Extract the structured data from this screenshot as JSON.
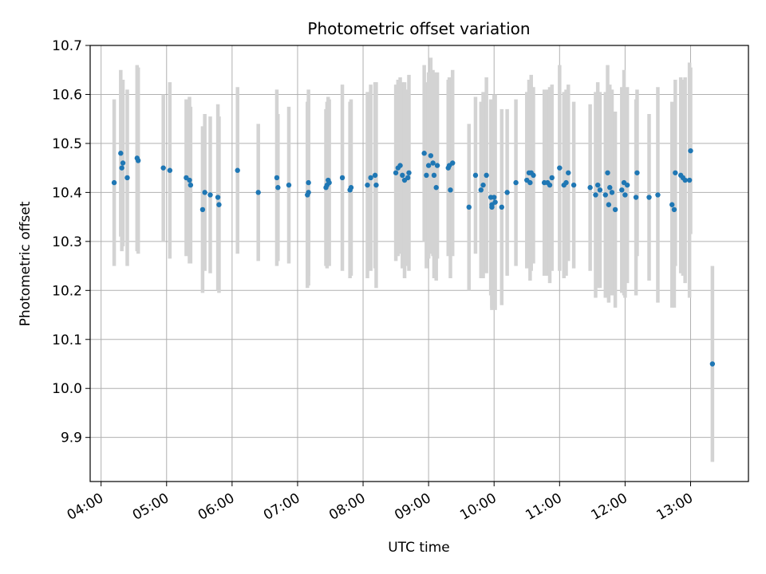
{
  "chart_data": {
    "type": "scatter",
    "title": "Photometric offset variation",
    "xlabel": "UTC time",
    "ylabel": "Photometric offset",
    "x_ticks": [
      "04:00",
      "05:00",
      "06:00",
      "07:00",
      "08:00",
      "09:00",
      "10:00",
      "11:00",
      "12:00",
      "13:00"
    ],
    "y_ticks": [
      "9.9",
      "10.0",
      "10.1",
      "10.2",
      "10.3",
      "10.4",
      "10.5",
      "10.6",
      "10.7"
    ],
    "xlim": [
      "03:50",
      "13:53"
    ],
    "ylim": [
      9.81,
      10.7
    ],
    "grid": true,
    "colors": {
      "points": "#1f77b4",
      "errorbars": "#d3d3d3",
      "grid": "#b0b0b0"
    },
    "series": [
      {
        "x": [
          "04:12",
          "04:18",
          "04:19",
          "04:20",
          "04:24",
          "04:33",
          "04:34",
          "04:57",
          "05:03",
          "05:18",
          "05:21",
          "05:22",
          "05:33",
          "05:35",
          "05:40",
          "05:47",
          "05:48",
          "06:05",
          "06:24",
          "06:41",
          "06:42",
          "06:52",
          "07:09",
          "07:10",
          "07:10",
          "07:26",
          "07:27",
          "07:28",
          "07:29",
          "07:41",
          "07:48",
          "07:49",
          "08:04",
          "08:07",
          "08:11",
          "08:12",
          "08:30",
          "08:32",
          "08:34",
          "08:36",
          "08:38",
          "08:41",
          "08:42",
          "08:56",
          "08:58",
          "09:00",
          "09:02",
          "09:04",
          "09:05",
          "09:07",
          "09:08",
          "09:18",
          "09:19",
          "09:20",
          "09:22",
          "09:37",
          "09:43",
          "09:48",
          "09:50",
          "09:53",
          "09:57",
          "09:58",
          "09:58",
          "10:00",
          "10:01",
          "10:07",
          "10:12",
          "10:20",
          "10:30",
          "10:32",
          "10:33",
          "10:34",
          "10:36",
          "10:46",
          "10:49",
          "10:51",
          "10:53",
          "11:00",
          "11:04",
          "11:06",
          "11:08",
          "11:13",
          "11:28",
          "11:33",
          "11:35",
          "11:37",
          "11:42",
          "11:44",
          "11:45",
          "11:46",
          "11:48",
          "11:51",
          "11:57",
          "11:59",
          "12:00",
          "12:02",
          "12:10",
          "12:11",
          "12:22",
          "12:30",
          "12:43",
          "12:45",
          "12:46",
          "12:51",
          "12:53",
          "12:55",
          "12:59",
          "13:00",
          "13:20"
        ],
        "y": [
          10.42,
          10.48,
          10.45,
          10.46,
          10.43,
          10.47,
          10.465,
          10.45,
          10.445,
          10.43,
          10.425,
          10.415,
          10.365,
          10.4,
          10.395,
          10.39,
          10.375,
          10.445,
          10.4,
          10.43,
          10.41,
          10.415,
          10.395,
          10.4,
          10.42,
          10.41,
          10.415,
          10.425,
          10.42,
          10.43,
          10.405,
          10.41,
          10.415,
          10.43,
          10.435,
          10.415,
          10.44,
          10.45,
          10.455,
          10.435,
          10.425,
          10.43,
          10.44,
          10.48,
          10.435,
          10.455,
          10.475,
          10.46,
          10.435,
          10.41,
          10.455,
          10.45,
          10.455,
          10.405,
          10.46,
          10.37,
          10.435,
          10.405,
          10.415,
          10.435,
          10.39,
          10.375,
          10.37,
          10.39,
          10.38,
          10.37,
          10.4,
          10.42,
          10.425,
          10.44,
          10.42,
          10.44,
          10.435,
          10.42,
          10.42,
          10.415,
          10.43,
          10.45,
          10.415,
          10.42,
          10.44,
          10.415,
          10.41,
          10.395,
          10.415,
          10.405,
          10.395,
          10.44,
          10.375,
          10.41,
          10.4,
          10.365,
          10.405,
          10.42,
          10.395,
          10.415,
          10.39,
          10.44,
          10.39,
          10.395,
          10.375,
          10.365,
          10.44,
          10.435,
          10.43,
          10.425,
          10.425,
          10.485,
          10.05
        ],
        "yerr": [
          0.17,
          0.17,
          0.17,
          0.17,
          0.18,
          0.19,
          0.19,
          0.15,
          0.18,
          0.16,
          0.17,
          0.16,
          0.17,
          0.16,
          0.16,
          0.19,
          0.18,
          0.17,
          0.14,
          0.18,
          0.15,
          0.16,
          0.19,
          0.19,
          0.19,
          0.16,
          0.17,
          0.17,
          0.17,
          0.19,
          0.18,
          0.18,
          0.19,
          0.19,
          0.19,
          0.21,
          0.18,
          0.18,
          0.18,
          0.19,
          0.2,
          0.18,
          0.2,
          0.18,
          0.19,
          0.19,
          0.2,
          0.19,
          0.21,
          0.19,
          0.19,
          0.18,
          0.18,
          0.18,
          0.19,
          0.17,
          0.16,
          0.18,
          0.19,
          0.2,
          0.2,
          0.21,
          0.21,
          0.21,
          0.22,
          0.2,
          0.17,
          0.17,
          0.18,
          0.19,
          0.2,
          0.2,
          0.18,
          0.19,
          0.19,
          0.2,
          0.19,
          0.21,
          0.19,
          0.19,
          0.18,
          0.17,
          0.17,
          0.21,
          0.21,
          0.2,
          0.21,
          0.22,
          0.2,
          0.21,
          0.21,
          0.2,
          0.21,
          0.23,
          0.21,
          0.2,
          0.2,
          0.17,
          0.17,
          0.22,
          0.21,
          0.2,
          0.19,
          0.2,
          0.2,
          0.21,
          0.24,
          0.17,
          0.2
        ]
      }
    ]
  }
}
